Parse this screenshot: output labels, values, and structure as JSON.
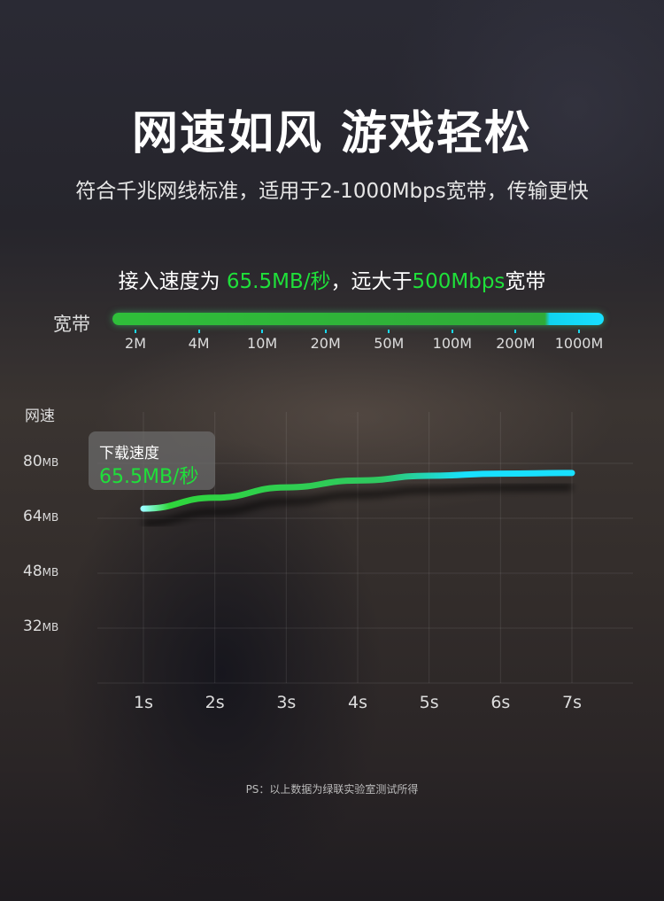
{
  "header": {
    "title": "网速如风 游戏轻松",
    "subtitle": "符合千兆网线标准，适用于2-1000Mbps宽带，传输更快",
    "speed_prefix": "接入速度为 ",
    "speed_value": "65.5MB/秒",
    "speed_middle": "，远大于",
    "speed_bandwidth": "500Mbps",
    "speed_suffix": "宽带"
  },
  "bandwidth_bar": {
    "label": "宽带",
    "ticks": [
      "2M",
      "4M",
      "10M",
      "20M",
      "50M",
      "100M",
      "200M",
      "1000M"
    ],
    "colors": {
      "green": "#2fbf3a",
      "cyan": "#18e0ff"
    }
  },
  "tooltip": {
    "title": "下载速度",
    "value": "65.5MB/秒"
  },
  "chart_data": {
    "type": "line",
    "ylabel": "网速",
    "xlabel": "",
    "x": [
      "1s",
      "2s",
      "3s",
      "4s",
      "5s",
      "6s",
      "7s"
    ],
    "y_ticks": [
      {
        "value": 80,
        "label": "80",
        "unit": "MB"
      },
      {
        "value": 64,
        "label": "64",
        "unit": "MB"
      },
      {
        "value": 48,
        "label": "48",
        "unit": "MB"
      },
      {
        "value": 32,
        "label": "32",
        "unit": "MB"
      }
    ],
    "ylim": [
      16,
      88
    ],
    "grid": true,
    "series": [
      {
        "values": [
          66.8,
          70,
          73,
          75,
          76.4,
          77,
          77.2
        ],
        "color_start": "#2fd63c",
        "color_end": "#18e0ff"
      }
    ]
  },
  "footnote": "PS：以上数据为绿联实验室测试所得"
}
